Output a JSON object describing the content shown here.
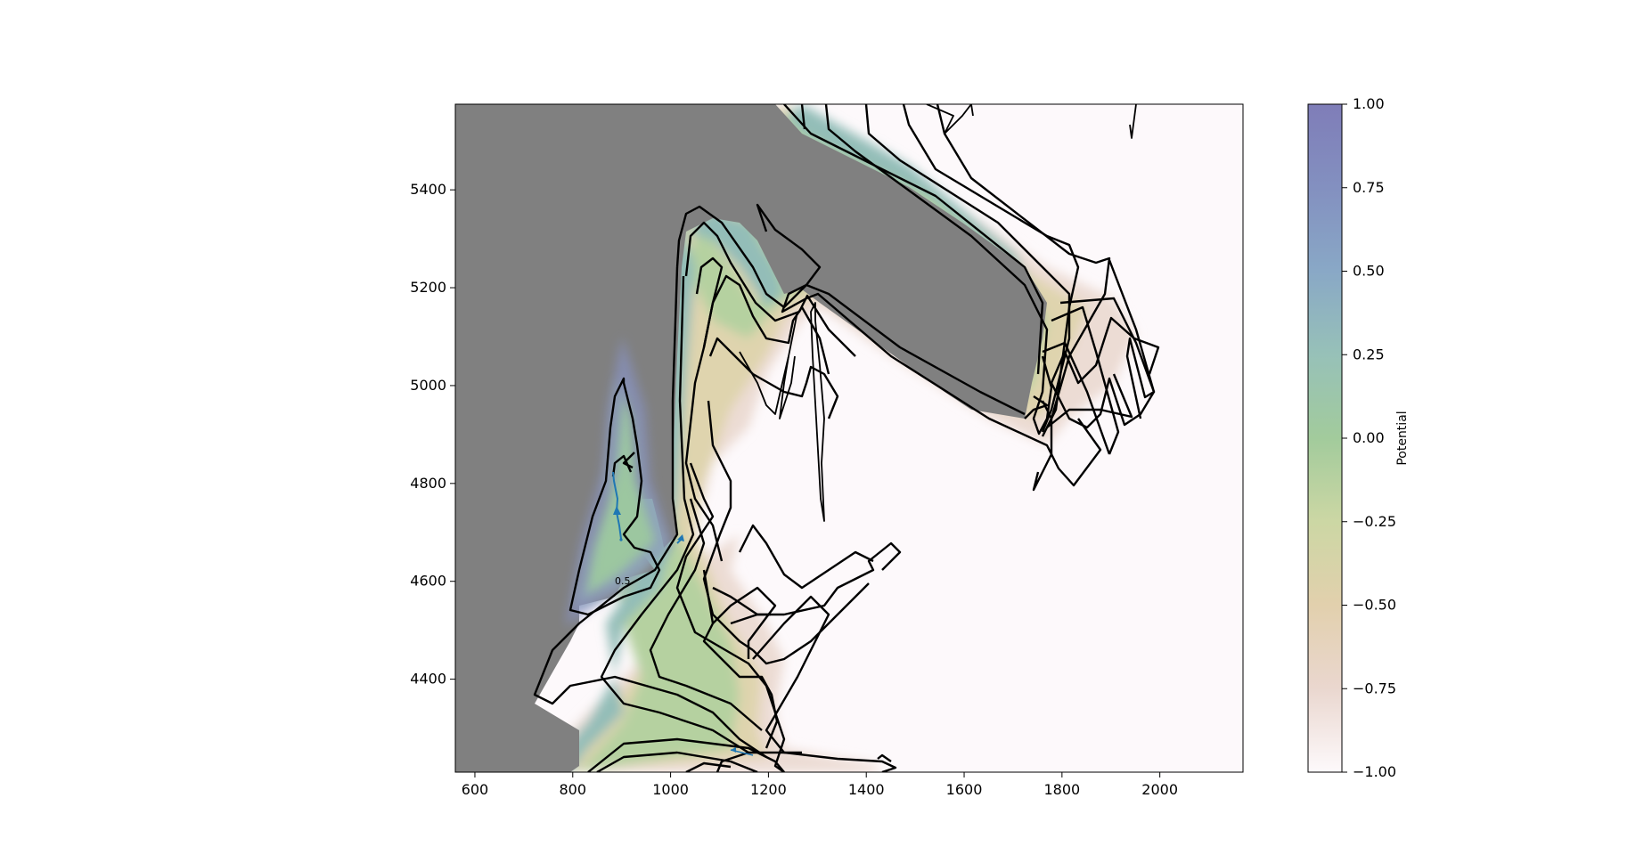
{
  "chart_data": {
    "type": "heatmap",
    "title": "",
    "xlabel": "",
    "ylabel": "",
    "xlim": [
      560,
      2170
    ],
    "ylim": [
      4210,
      5575
    ],
    "x_ticks": [
      600,
      800,
      1000,
      1200,
      1400,
      1600,
      1800,
      2000
    ],
    "y_ticks": [
      4400,
      4600,
      4800,
      5000,
      5200,
      5400
    ],
    "x_tick_labels": [
      "600",
      "800",
      "1000",
      "1200",
      "1400",
      "1600",
      "1800",
      "2000"
    ],
    "y_tick_labels": [
      "4400",
      "4600",
      "4800",
      "5000",
      "5200",
      "5400"
    ],
    "grid": false,
    "colorbar": {
      "label": "Potential",
      "range": [
        -1.0,
        1.0
      ],
      "ticks": [
        1.0,
        0.75,
        0.5,
        0.25,
        0.0,
        -0.25,
        -0.5,
        -0.75,
        -1.0
      ],
      "tick_labels": [
        "1.00",
        "0.75",
        "0.50",
        "0.25",
        "0.00",
        "−0.25",
        "−0.50",
        "−0.75",
        "−1.00"
      ],
      "colors": [
        "#fdf9fb",
        "#ead7cf",
        "#e2d0ad",
        "#ccd7a4",
        "#a2cb9c",
        "#97c1b8",
        "#89a8c6",
        "#8390c0",
        "#7f7db8"
      ]
    },
    "masked_color": "#808080",
    "contour_label": "0.5",
    "flow_arrow_color": "#1f77b4"
  }
}
